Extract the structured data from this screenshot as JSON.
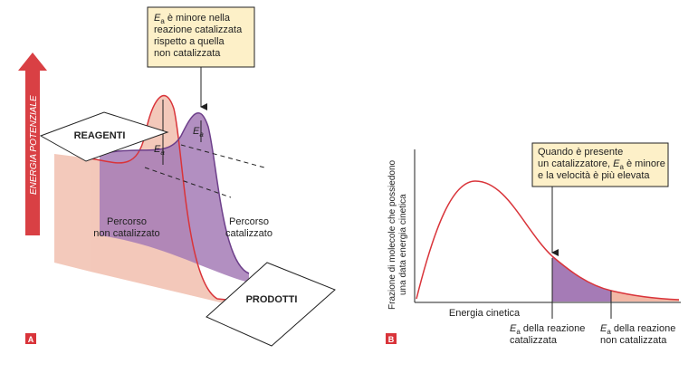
{
  "panel_a": {
    "letter": "A",
    "axis_label": "ENERGIA POTENZIALE",
    "reactants": "REAGENTI",
    "products": "PRODOTTI",
    "uncatalyzed_path": [
      "Percorso",
      "non catalizzato"
    ],
    "catalyzed_path": [
      "Percorso",
      "catalizzato"
    ],
    "ea_uncatalyzed": {
      "symbol": "E",
      "subscript": "a"
    },
    "ea_catalyzed": {
      "symbol": "E",
      "subscript": "a"
    },
    "callout": {
      "symbol": "E",
      "subscript": "a",
      "lines": [
        " è minore nella",
        "reazione catalizzata",
        "rispetto a quella",
        "non catalizzata"
      ]
    }
  },
  "panel_b": {
    "letter": "B",
    "y_label": [
      "Frazione di molecole che possiedono",
      "una data energia cinetica"
    ],
    "x_label": "Energia cinetica",
    "callout": {
      "line1": "Quando è presente",
      "line2_before": "un catalizzatore, ",
      "symbol": "E",
      "subscript": "a",
      "line2_after": " è minore",
      "line3": "e la velocità è più elevata"
    },
    "ea_catalyzed": {
      "symbol": "E",
      "subscript": "a",
      "lines": [
        " della reazione",
        "catalizzata"
      ]
    },
    "ea_uncatalyzed": {
      "symbol": "E",
      "subscript": "a",
      "lines": [
        " della reazione",
        "non catalizzata"
      ]
    }
  }
}
